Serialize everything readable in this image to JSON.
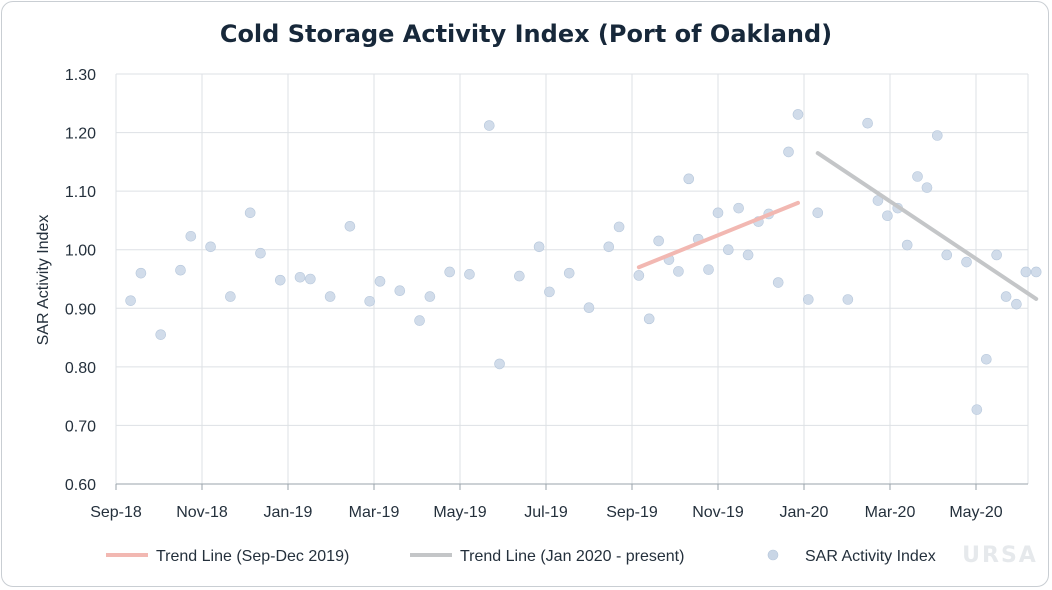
{
  "chart_data": {
    "type": "scatter",
    "title": "Cold Storage Activity Index (Port of Oakland)",
    "xlabel": "",
    "ylabel": "SAR Activity Index",
    "ylim": [
      0.6,
      1.3
    ],
    "yticks": [
      "0.60",
      "0.70",
      "0.80",
      "0.90",
      "1.00",
      "1.10",
      "1.20",
      "1.30"
    ],
    "xlim_month_index": [
      0,
      10.4
    ],
    "xticks": [
      {
        "label": "Sep-18",
        "m": 0
      },
      {
        "label": "Nov-18",
        "m": 1
      },
      {
        "label": "Jan-19",
        "m": 2
      },
      {
        "label": "Mar-19",
        "m": 3
      },
      {
        "label": "May-19",
        "m": 4
      },
      {
        "label": "Jul-19",
        "m": 5
      },
      {
        "label": "Sep-19",
        "m": 6
      },
      {
        "label": "Nov-19",
        "m": 7
      },
      {
        "label": "Jan-20",
        "m": 8
      },
      {
        "label": "Mar-20",
        "m": 9
      },
      {
        "label": "May-20",
        "m": 10
      }
    ],
    "x_unit_note": "m = bi-monthly index (0 = Sep-18, 1 = Nov-18, ...)",
    "series": [
      {
        "name": "SAR Activity Index",
        "kind": "scatter",
        "color": "#c9d6e6",
        "points": [
          {
            "m": 0.17,
            "y": 0.913
          },
          {
            "m": 0.29,
            "y": 0.96
          },
          {
            "m": 0.52,
            "y": 0.855
          },
          {
            "m": 0.75,
            "y": 0.965
          },
          {
            "m": 0.87,
            "y": 1.023
          },
          {
            "m": 1.1,
            "y": 1.005
          },
          {
            "m": 1.33,
            "y": 0.92
          },
          {
            "m": 1.56,
            "y": 1.063
          },
          {
            "m": 1.68,
            "y": 0.994
          },
          {
            "m": 1.91,
            "y": 0.948
          },
          {
            "m": 2.14,
            "y": 0.953
          },
          {
            "m": 2.26,
            "y": 0.95
          },
          {
            "m": 2.49,
            "y": 0.92
          },
          {
            "m": 2.72,
            "y": 1.04
          },
          {
            "m": 2.95,
            "y": 0.912
          },
          {
            "m": 3.07,
            "y": 0.946
          },
          {
            "m": 3.3,
            "y": 0.93
          },
          {
            "m": 3.53,
            "y": 0.879
          },
          {
            "m": 3.65,
            "y": 0.92
          },
          {
            "m": 3.88,
            "y": 0.962
          },
          {
            "m": 4.11,
            "y": 0.958
          },
          {
            "m": 4.34,
            "y": 1.212
          },
          {
            "m": 4.46,
            "y": 0.805
          },
          {
            "m": 4.69,
            "y": 0.955
          },
          {
            "m": 4.92,
            "y": 1.005
          },
          {
            "m": 5.04,
            "y": 0.928
          },
          {
            "m": 5.27,
            "y": 0.96
          },
          {
            "m": 5.5,
            "y": 0.901
          },
          {
            "m": 5.73,
            "y": 1.005
          },
          {
            "m": 5.85,
            "y": 1.039
          },
          {
            "m": 6.08,
            "y": 0.956
          },
          {
            "m": 6.2,
            "y": 0.882
          },
          {
            "m": 6.31,
            "y": 1.015
          },
          {
            "m": 6.43,
            "y": 0.983
          },
          {
            "m": 6.54,
            "y": 0.963
          },
          {
            "m": 6.66,
            "y": 1.121
          },
          {
            "m": 6.77,
            "y": 1.018
          },
          {
            "m": 6.89,
            "y": 0.966
          },
          {
            "m": 7.0,
            "y": 1.063
          },
          {
            "m": 7.12,
            "y": 1.0
          },
          {
            "m": 7.24,
            "y": 1.071
          },
          {
            "m": 7.35,
            "y": 0.991
          },
          {
            "m": 7.47,
            "y": 1.048
          },
          {
            "m": 7.59,
            "y": 1.061
          },
          {
            "m": 7.7,
            "y": 0.944
          },
          {
            "m": 7.82,
            "y": 1.167
          },
          {
            "m": 7.93,
            "y": 1.231
          },
          {
            "m": 8.05,
            "y": 0.915
          },
          {
            "m": 8.16,
            "y": 1.063
          },
          {
            "m": 8.51,
            "y": 0.915
          },
          {
            "m": 8.74,
            "y": 1.216
          },
          {
            "m": 8.86,
            "y": 1.084
          },
          {
            "m": 8.97,
            "y": 1.058
          },
          {
            "m": 9.09,
            "y": 1.071
          },
          {
            "m": 9.2,
            "y": 1.008
          },
          {
            "m": 9.32,
            "y": 1.125
          },
          {
            "m": 9.43,
            "y": 1.106
          },
          {
            "m": 9.55,
            "y": 1.195
          },
          {
            "m": 9.66,
            "y": 0.991
          },
          {
            "m": 9.89,
            "y": 0.979
          },
          {
            "m": 10.01,
            "y": 0.727
          },
          {
            "m": 10.12,
            "y": 0.813
          },
          {
            "m": 10.24,
            "y": 0.991
          },
          {
            "m": 10.35,
            "y": 0.92
          },
          {
            "m": 10.47,
            "y": 0.907
          },
          {
            "m": 10.58,
            "y": 0.962
          },
          {
            "m": 10.7,
            "y": 0.962
          }
        ]
      },
      {
        "name": "Trend Line (Sep-Dec 2019)",
        "kind": "line",
        "color": "#f2b8b2",
        "points": [
          {
            "m": 6.08,
            "y": 0.97
          },
          {
            "m": 7.93,
            "y": 1.08
          }
        ]
      },
      {
        "name": "Trend Line (Jan 2020 - present)",
        "kind": "line",
        "color": "#c4c6c8",
        "points": [
          {
            "m": 8.16,
            "y": 1.165
          },
          {
            "m": 10.7,
            "y": 0.916
          }
        ]
      }
    ],
    "legend": {
      "position": "bottom",
      "entries": [
        "Trend Line (Sep-Dec 2019)",
        "Trend Line (Jan 2020 - present)",
        "SAR Activity Index"
      ]
    }
  },
  "watermark": "URSA"
}
